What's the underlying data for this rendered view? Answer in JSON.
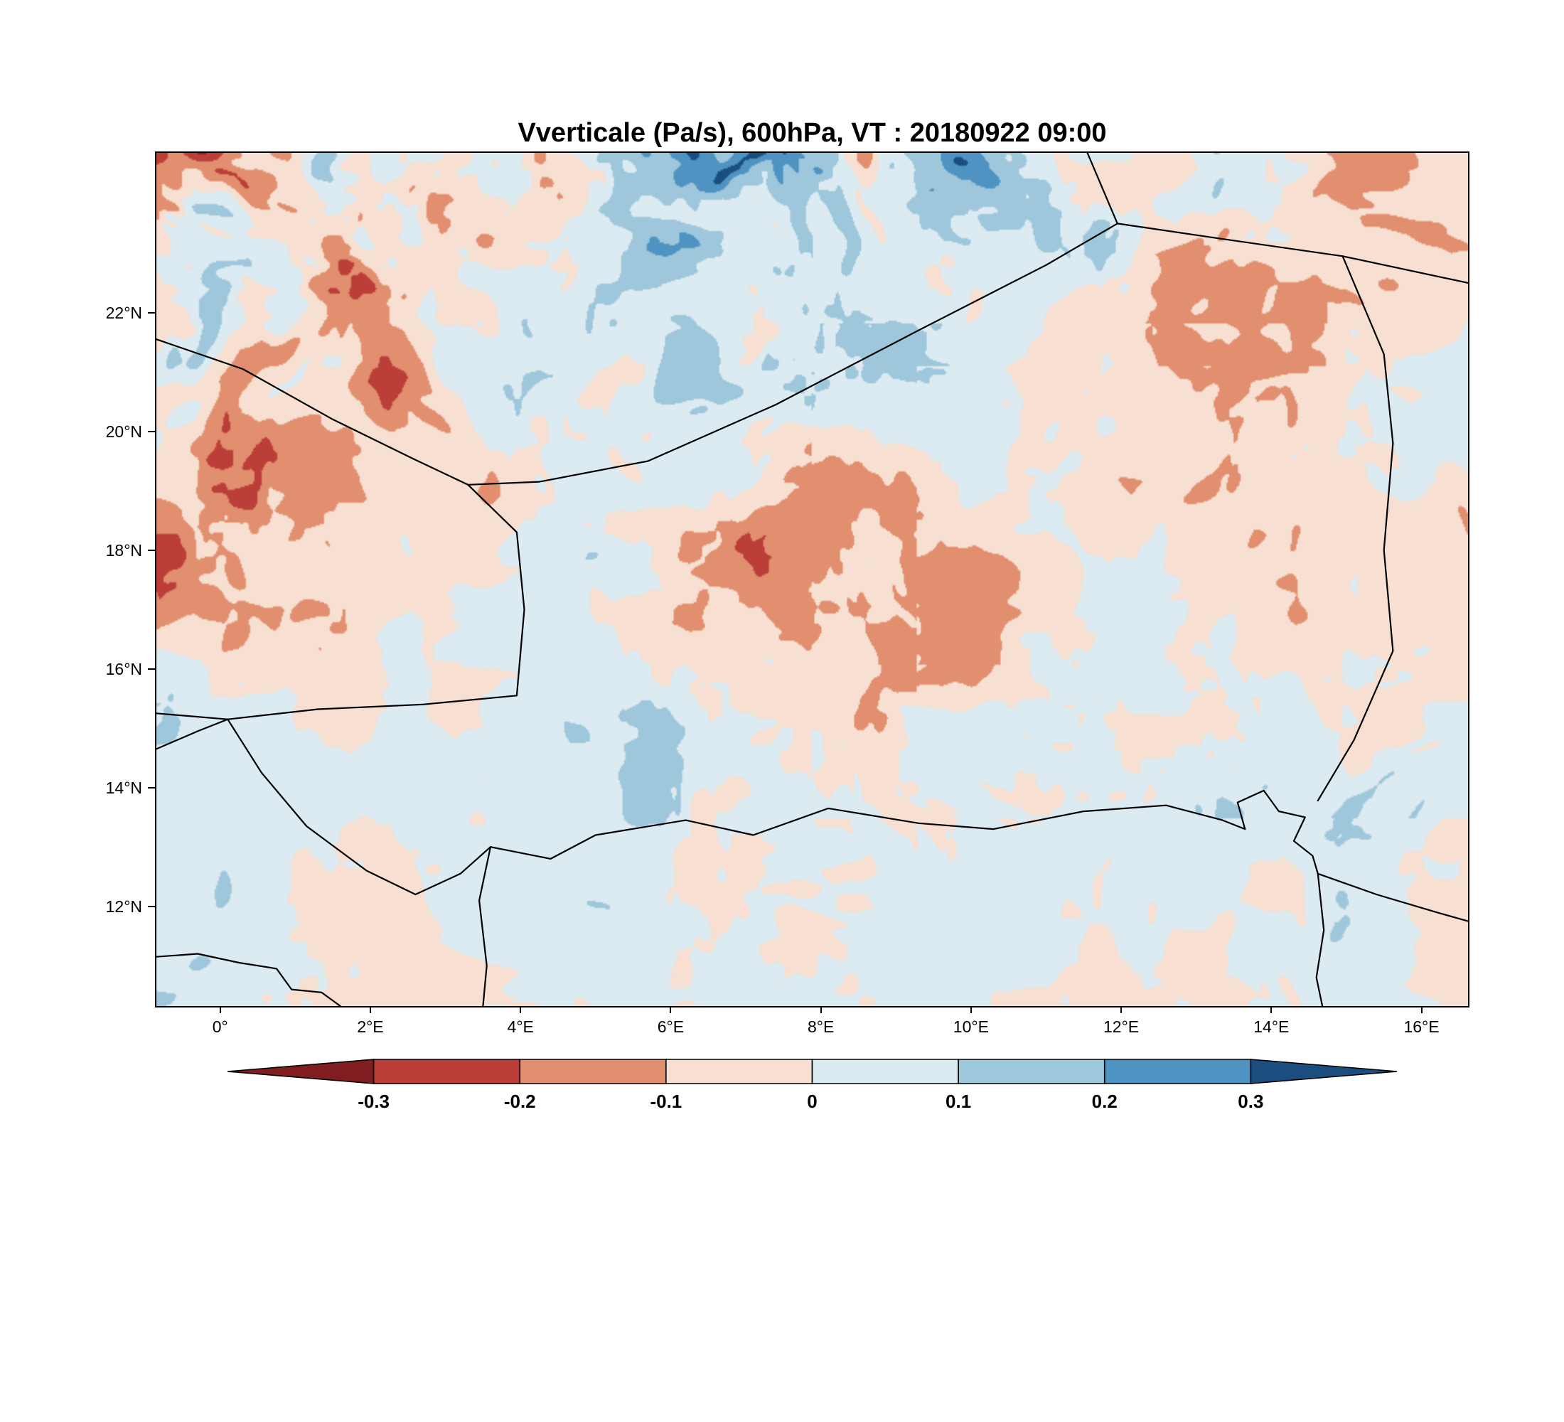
{
  "title": "Vverticale (Pa/s), 600hPa, VT : 20180922  09:00",
  "chart_data": {
    "type": "heatmap",
    "title": "Vverticale (Pa/s), 600hPa, VT : 20180922  09:00",
    "variable": "Vverticale",
    "units": "Pa/s",
    "pressure_level": "600hPa",
    "valid_time": "20180922 09:00",
    "geo": {
      "lon_min": -0.85,
      "lon_max": 16.62,
      "lat_min": 10.32,
      "lat_max": 24.69
    },
    "x_axis": {
      "ticks": [
        {
          "label": "0°",
          "value": 0
        },
        {
          "label": "2°E",
          "value": 2
        },
        {
          "label": "4°E",
          "value": 4
        },
        {
          "label": "6°E",
          "value": 6
        },
        {
          "label": "8°E",
          "value": 8
        },
        {
          "label": "10°E",
          "value": 10
        },
        {
          "label": "12°E",
          "value": 12
        },
        {
          "label": "14°E",
          "value": 14
        },
        {
          "label": "16°E",
          "value": 16
        }
      ]
    },
    "y_axis": {
      "ticks": [
        {
          "label": "22°N",
          "value": 22
        },
        {
          "label": "20°N",
          "value": 20
        },
        {
          "label": "18°N",
          "value": 18
        },
        {
          "label": "16°N",
          "value": 16
        },
        {
          "label": "14°N",
          "value": 14
        },
        {
          "label": "12°N",
          "value": 12
        }
      ]
    },
    "colorbar": {
      "orientation": "horizontal",
      "levels": [
        -0.3,
        -0.2,
        -0.1,
        0,
        0.1,
        0.2,
        0.3
      ],
      "labels": [
        "-0.3",
        "-0.2",
        "-0.1",
        "0",
        "0.1",
        "0.2",
        "0.3"
      ],
      "colors": [
        "#7f1d21",
        "#bb3e38",
        "#e28f6f",
        "#f7e0d2",
        "#dcebf1",
        "#9ec7dc",
        "#4e93c2",
        "#1b4d7e"
      ]
    },
    "field_summary": "Mesoscale vertical-velocity field: strong updraft/downdraft couplets (dark blue / dark maroon streaks) concentrated over the northwest quadrant and along the northern edge of the domain; predominantly weak values between -0.1 and 0.1 Pa/s (pale pink / pale blue) over the eastern and southern portions.",
    "map_borders": [
      {
        "name": "mali-algeria",
        "points": [
          [
            -0.85,
            21.55
          ],
          [
            0.3,
            21.05
          ],
          [
            1.5,
            20.2
          ],
          [
            2.55,
            19.55
          ],
          [
            3.3,
            19.1
          ]
        ]
      },
      {
        "name": "algeria-niger",
        "points": [
          [
            3.3,
            19.1
          ],
          [
            4.25,
            19.15
          ],
          [
            5.7,
            19.5
          ],
          [
            7.4,
            20.45
          ],
          [
            9.3,
            21.7
          ],
          [
            11.0,
            22.8
          ],
          [
            11.95,
            23.5
          ]
        ]
      },
      {
        "name": "algeria-libya",
        "points": [
          [
            11.95,
            23.5
          ],
          [
            11.55,
            24.69
          ]
        ]
      },
      {
        "name": "libya-niger-chad",
        "points": [
          [
            11.95,
            23.5
          ],
          [
            13.3,
            23.25
          ],
          [
            14.95,
            22.95
          ],
          [
            16.62,
            22.5
          ]
        ]
      },
      {
        "name": "niger-chad",
        "points": [
          [
            14.95,
            22.95
          ],
          [
            15.5,
            21.3
          ],
          [
            15.62,
            19.8
          ],
          [
            15.5,
            18.0
          ],
          [
            15.62,
            16.3
          ],
          [
            15.1,
            14.8
          ],
          [
            14.62,
            13.78
          ]
        ]
      },
      {
        "name": "mali-niger",
        "points": [
          [
            3.3,
            19.1
          ],
          [
            3.95,
            18.3
          ],
          [
            4.05,
            17.0
          ],
          [
            3.95,
            15.55
          ],
          [
            2.7,
            15.4
          ],
          [
            1.3,
            15.32
          ],
          [
            0.1,
            15.15
          ],
          [
            -0.85,
            15.25
          ]
        ]
      },
      {
        "name": "mali-burkina",
        "points": [
          [
            -0.85,
            14.65
          ],
          [
            -0.3,
            14.95
          ],
          [
            0.1,
            15.15
          ]
        ]
      },
      {
        "name": "burkina-niger",
        "points": [
          [
            0.1,
            15.15
          ],
          [
            0.55,
            14.25
          ],
          [
            1.15,
            13.35
          ],
          [
            1.95,
            12.6
          ],
          [
            2.6,
            12.2
          ],
          [
            3.2,
            12.55
          ],
          [
            3.6,
            13.0
          ]
        ]
      },
      {
        "name": "benin-nigeria",
        "points": [
          [
            3.6,
            13.0
          ],
          [
            3.45,
            12.1
          ],
          [
            3.55,
            11.0
          ],
          [
            3.5,
            10.32
          ]
        ]
      },
      {
        "name": "niger-nigeria",
        "points": [
          [
            3.6,
            13.0
          ],
          [
            4.4,
            12.8
          ],
          [
            5.0,
            13.2
          ],
          [
            6.2,
            13.45
          ],
          [
            7.1,
            13.2
          ],
          [
            8.1,
            13.65
          ],
          [
            9.3,
            13.4
          ],
          [
            10.3,
            13.3
          ],
          [
            11.5,
            13.6
          ],
          [
            12.6,
            13.7
          ],
          [
            13.35,
            13.45
          ],
          [
            13.65,
            13.3
          ]
        ]
      },
      {
        "name": "lake-chad",
        "points": [
          [
            13.65,
            13.3
          ],
          [
            13.55,
            13.75
          ],
          [
            13.9,
            13.95
          ],
          [
            14.1,
            13.6
          ],
          [
            14.45,
            13.5
          ],
          [
            14.3,
            13.1
          ],
          [
            14.55,
            12.85
          ],
          [
            14.62,
            12.55
          ]
        ]
      },
      {
        "name": "nigeria-cameroon",
        "points": [
          [
            14.62,
            12.55
          ],
          [
            14.7,
            11.6
          ],
          [
            14.6,
            10.8
          ],
          [
            14.68,
            10.32
          ]
        ]
      },
      {
        "name": "chad-cameroon",
        "points": [
          [
            14.62,
            12.55
          ],
          [
            15.4,
            12.2
          ],
          [
            16.2,
            11.9
          ],
          [
            16.62,
            11.75
          ]
        ]
      },
      {
        "name": "burkina-togo-benin",
        "points": [
          [
            -0.85,
            11.15
          ],
          [
            -0.3,
            11.2
          ],
          [
            0.25,
            11.05
          ],
          [
            0.75,
            10.95
          ],
          [
            0.95,
            10.6
          ],
          [
            1.35,
            10.55
          ],
          [
            1.6,
            10.32
          ]
        ]
      }
    ]
  }
}
